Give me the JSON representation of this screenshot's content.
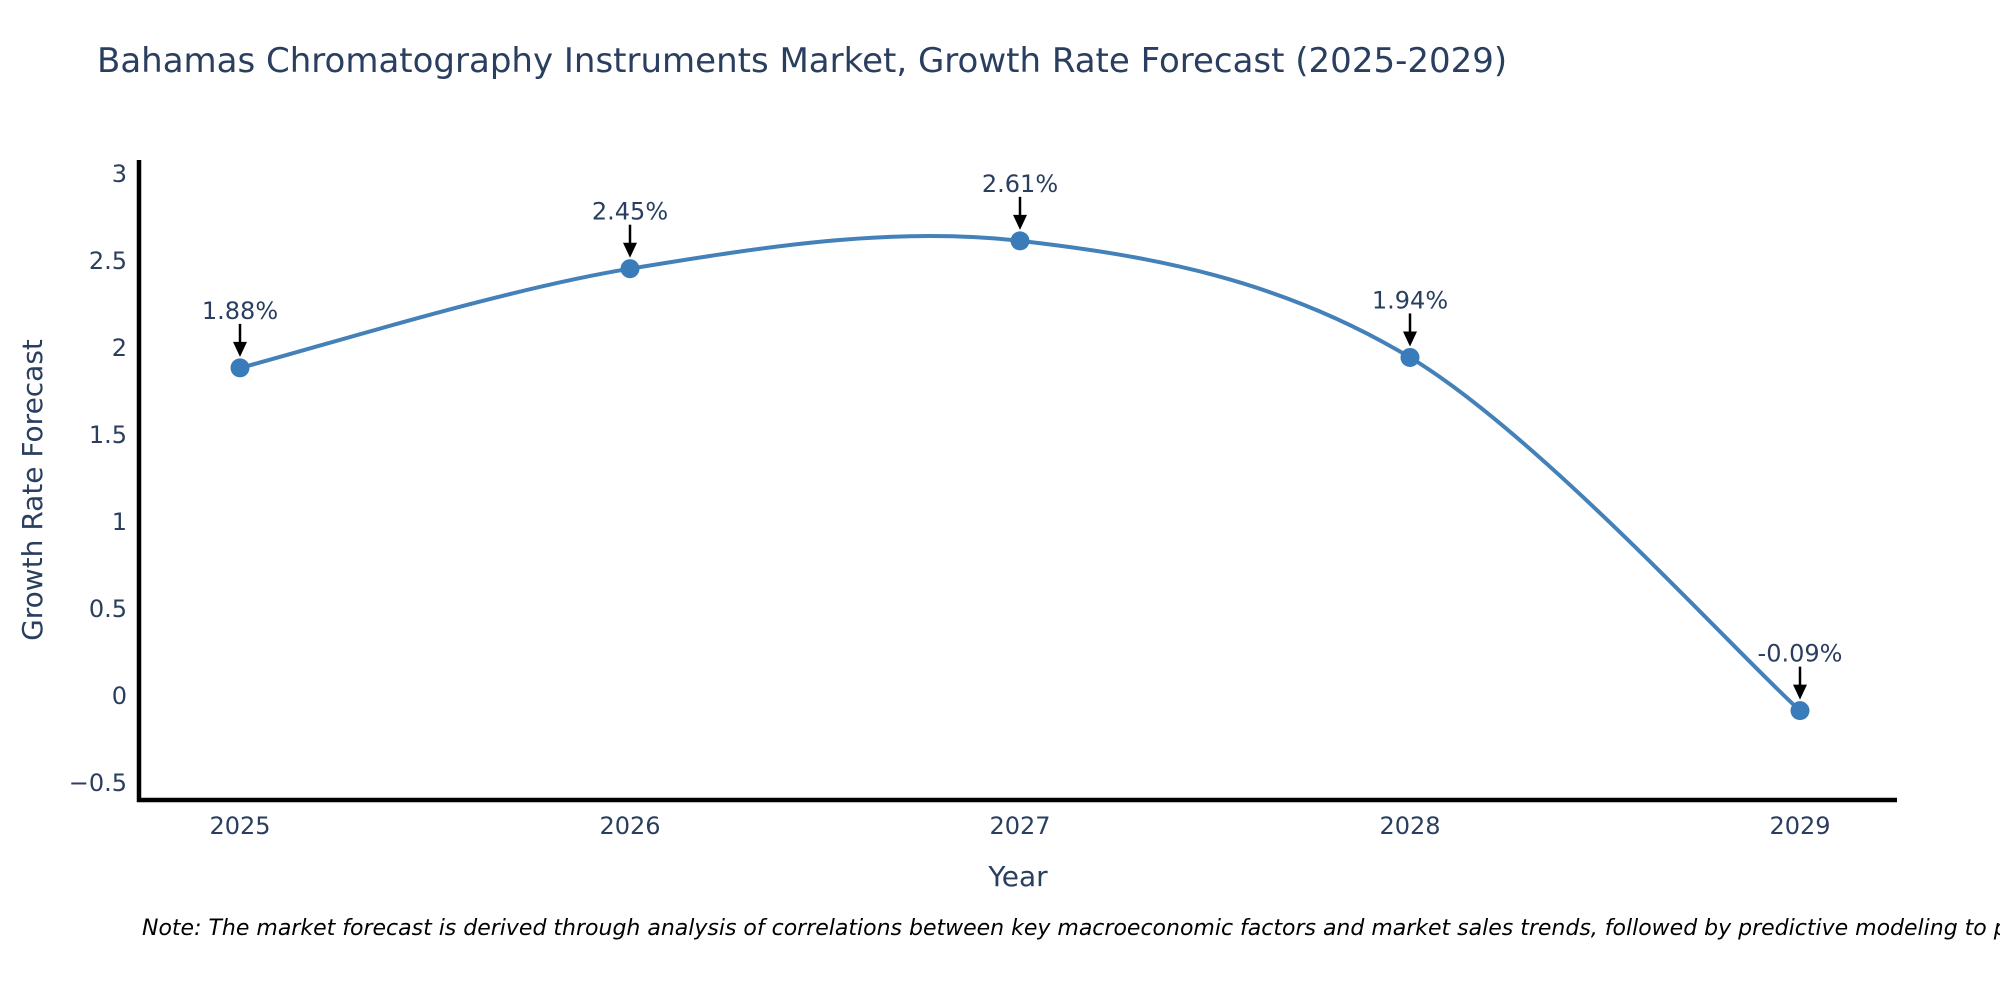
{
  "page": {
    "background": "#ffffff"
  },
  "header": {
    "title": "Bahamas Chromatography Instruments Market, Growth Rate Forecast (2025-2029)"
  },
  "footnote": {
    "text": "Note: The market forecast is derived through analysis of correlations between key macroeconomic factors and market sales trends, followed by predictive modeling to project future sales."
  },
  "chart_data": {
    "type": "line",
    "line_shape": "spline",
    "markers": true,
    "grid": false,
    "legend": "none",
    "title": "Bahamas Chromatography Instruments Market, Growth Rate Forecast (2025-2029)",
    "xlabel": "Year",
    "ylabel": "Growth Rate Forecast",
    "x": [
      2025,
      2026,
      2027,
      2028,
      2029
    ],
    "y": [
      1.88,
      2.45,
      2.61,
      1.94,
      -0.09
    ],
    "point_labels": [
      "1.88%",
      "2.45%",
      "2.61%",
      "1.94%",
      "-0.09%"
    ],
    "xtick_labels": [
      "2025",
      "2026",
      "2027",
      "2028",
      "2029"
    ],
    "ytick_values": [
      3,
      2.5,
      2,
      1.5,
      1,
      0.5,
      0,
      -0.5
    ],
    "ytick_labels": [
      "3",
      "2.5",
      "2",
      "1.5",
      "1",
      "0.5",
      "0",
      "−0.5"
    ],
    "xlim": [
      2024.74,
      2029.25
    ],
    "ylim": [
      -0.6,
      3.08
    ],
    "colors": {
      "line": "#4381b8",
      "marker": "#3a7cba",
      "axis": "#000000",
      "tick_text": "#2a3f5f",
      "axis_title_text": "#2a3f5f",
      "title_text": "#2a3f5f",
      "annotation_text": "#2a3f5f",
      "annotation_arrow": "#000000",
      "note_text": "#000000"
    }
  }
}
